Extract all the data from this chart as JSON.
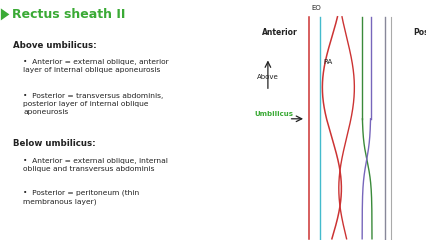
{
  "title": "Rectus sheath II",
  "title_color": "#3aaa35",
  "bg_color": "#ffffff",
  "text_color": "#222222",
  "green_color": "#3aaa35",
  "above_umbilicus_title": "Above umbilicus:",
  "above_bullet1": "Anterior = external oblique, anterior\nlayer of internal oblique aponeurosis",
  "above_bullet2": "Posterior = transversus abdominis,\nposterior layer of internal oblique\naponeurosis",
  "below_umbilicus_title": "Below umbilicus:",
  "below_bullet1": "Anterior = external oblique, internal\noblique and transversus abdominis",
  "below_bullet2": "Posterior = peritoneum (thin\nmembranous layer)",
  "diagram_anterior_label": "Anterior",
  "diagram_posterior_label": "Posterior",
  "diagram_eo_label": "EO",
  "diagram_ra_label": "RA",
  "diagram_above_label": "Above",
  "diagram_umbilicus_label": "Umbilicus",
  "line_colors": {
    "red": "#cc3333",
    "cyan": "#44bbcc",
    "teal": "#3a8a3a",
    "purple": "#7766bb",
    "gray1": "#888899",
    "gray2": "#aaaaaa"
  }
}
